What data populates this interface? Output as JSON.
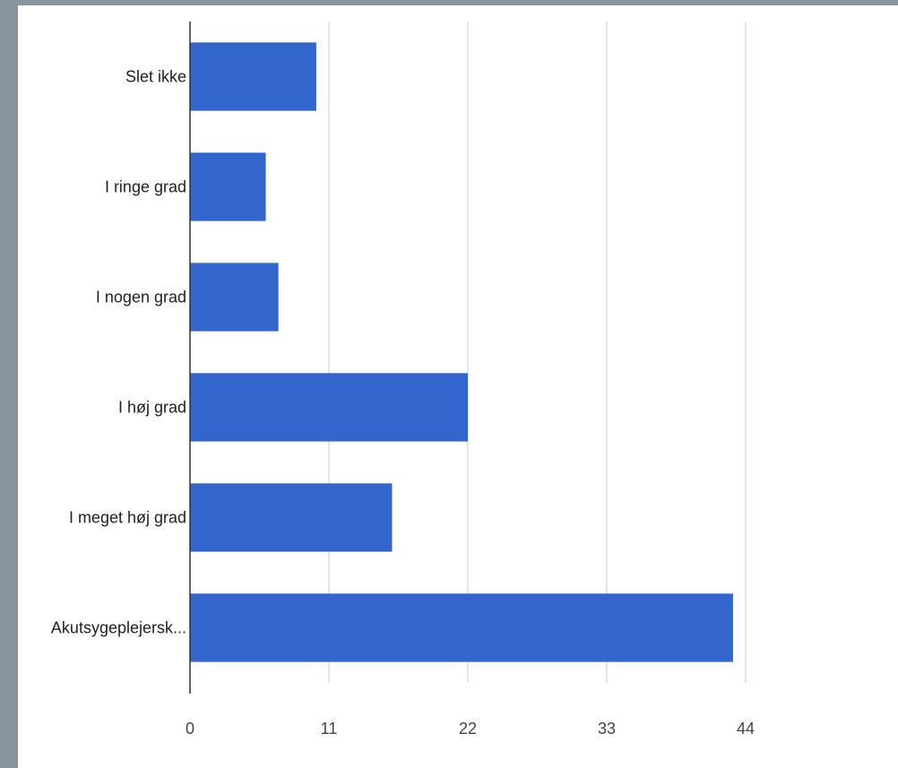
{
  "chart_data": {
    "type": "bar",
    "orientation": "horizontal",
    "categories": [
      "Slet ikke",
      "I ringe grad",
      "I nogen grad",
      "I høj grad",
      "I meget høj grad",
      "Akutsygeplejersk..."
    ],
    "values": [
      10,
      6,
      7,
      22,
      16,
      43
    ],
    "xlim": [
      0,
      44
    ],
    "x_ticks": [
      "0",
      "11",
      "22",
      "33",
      "44"
    ],
    "x_tick_values": [
      0,
      11,
      22,
      33,
      44
    ],
    "grid": true,
    "title": "",
    "xlabel": "",
    "ylabel": "",
    "bar_color": "#3366cc",
    "grid_color": "#cccccc",
    "axis_color": "#333333"
  }
}
